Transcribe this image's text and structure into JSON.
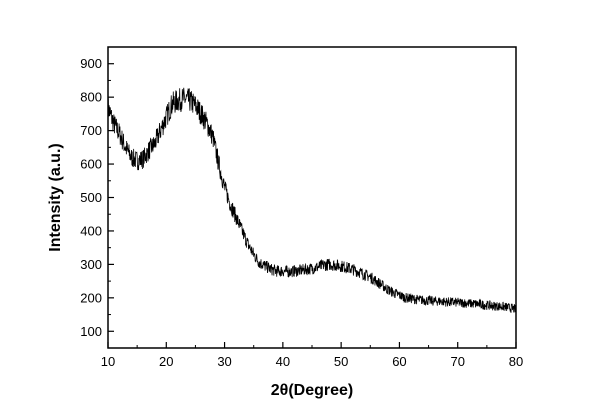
{
  "chart_data": {
    "type": "line",
    "xlabel": "2θ(Degree)",
    "ylabel": "Intensity (a.u.)",
    "xlim": [
      10,
      80
    ],
    "ylim": [
      50,
      950
    ],
    "xticks": [
      10,
      20,
      30,
      40,
      50,
      60,
      70,
      80
    ],
    "yticks": [
      100,
      200,
      300,
      400,
      500,
      600,
      700,
      800,
      900
    ],
    "grid": false,
    "series": [
      {
        "color": "#000000",
        "x": [
          10,
          11,
          12,
          13,
          14,
          15,
          16,
          17,
          18,
          19,
          20,
          21,
          22,
          23,
          24,
          25,
          26,
          27,
          28,
          29,
          30,
          31,
          32,
          33,
          34,
          35,
          36,
          37,
          38,
          39,
          40,
          41,
          42,
          43,
          44,
          45,
          46,
          47,
          48,
          49,
          50,
          51,
          52,
          53,
          54,
          55,
          56,
          57,
          58,
          59,
          60,
          61,
          62,
          63,
          64,
          65,
          66,
          67,
          68,
          69,
          70,
          71,
          72,
          73,
          74,
          75,
          76,
          77,
          78,
          79,
          80
        ],
        "y": [
          770,
          720,
          690,
          650,
          620,
          610,
          615,
          640,
          660,
          700,
          740,
          780,
          790,
          795,
          790,
          775,
          750,
          720,
          680,
          600,
          530,
          480,
          440,
          400,
          360,
          330,
          305,
          295,
          285,
          280,
          280,
          278,
          280,
          282,
          285,
          288,
          292,
          298,
          300,
          298,
          295,
          290,
          285,
          278,
          270,
          262,
          250,
          238,
          225,
          215,
          208,
          200,
          198,
          195,
          193,
          192,
          190,
          190,
          188,
          187,
          186,
          185,
          183,
          182,
          180,
          178,
          176,
          175,
          173,
          170,
          165
        ]
      }
    ]
  }
}
